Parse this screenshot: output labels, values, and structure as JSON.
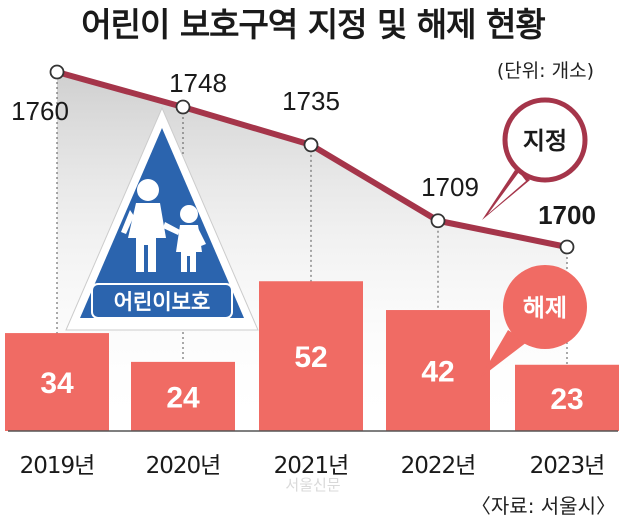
{
  "title": "어린이 보호구역 지정 및 해제 현황",
  "unit": "(단위: 개소)",
  "source": "〈자료: 서울시〉",
  "sign_text": "어린이보호",
  "watermark": "서울신문",
  "colors": {
    "line": "#a5354a",
    "bar": "#f06b64",
    "area": "#d2d2d2",
    "sign_blue": "#2b64ae"
  },
  "chart_data": {
    "type": "bar",
    "title": "어린이 보호구역 지정 및 해제 현황",
    "unit": "(단위: 개소)",
    "categories": [
      "2019년",
      "2020년",
      "2021년",
      "2022년",
      "2023년"
    ],
    "series": [
      {
        "name": "지정",
        "type": "line",
        "values": [
          1760,
          1748,
          1735,
          1709,
          1700
        ]
      },
      {
        "name": "해제",
        "type": "bar",
        "values": [
          34,
          24,
          52,
          42,
          23
        ]
      }
    ],
    "legend": [
      "지정",
      "해제"
    ]
  }
}
